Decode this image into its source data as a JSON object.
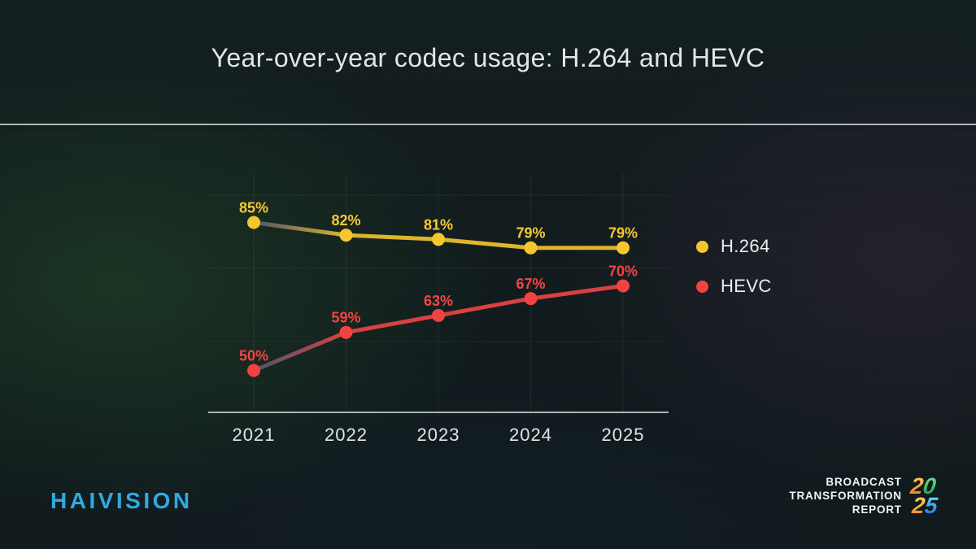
{
  "title": "Year-over-year codec usage: H.264 and HEVC",
  "chart_data": {
    "type": "line",
    "categories": [
      "2021",
      "2022",
      "2023",
      "2024",
      "2025"
    ],
    "series": [
      {
        "name": "H.264",
        "values": [
          85,
          82,
          81,
          79,
          79
        ],
        "dot_color": "#f6c62f",
        "line_color": "#ddb42a",
        "label_color": "#f8c930"
      },
      {
        "name": "HEVC",
        "values": [
          50,
          59,
          63,
          67,
          70
        ],
        "dot_color": "#f14241",
        "line_color": "#d84040",
        "label_color": "#f34442"
      }
    ],
    "value_suffix": "%",
    "ylim": [
      40,
      95
    ],
    "grid": true,
    "legend_position": "right",
    "first_segment_fade_color": "#4a546b",
    "axis_color": "rgba(208,218,216,0.8)",
    "tick_label_color": "#e0e4e4"
  },
  "footer": {
    "brand": "HAIVISION",
    "brand_color": "#2fa9e1",
    "report_lines": [
      "BROADCAST",
      "TRANSFORMATION",
      "REPORT"
    ],
    "logo_year": {
      "rows": [
        [
          {
            "char": "2",
            "from": "#ffd04a",
            "to": "#f2752a"
          },
          {
            "char": "0",
            "from": "#6fe395",
            "to": "#1f9a4f"
          }
        ],
        [
          {
            "char": "2",
            "from": "#ffd84f",
            "to": "#ef8c1d"
          },
          {
            "char": "5",
            "from": "#62e0f7",
            "to": "#1b6fe0"
          }
        ]
      ]
    }
  }
}
